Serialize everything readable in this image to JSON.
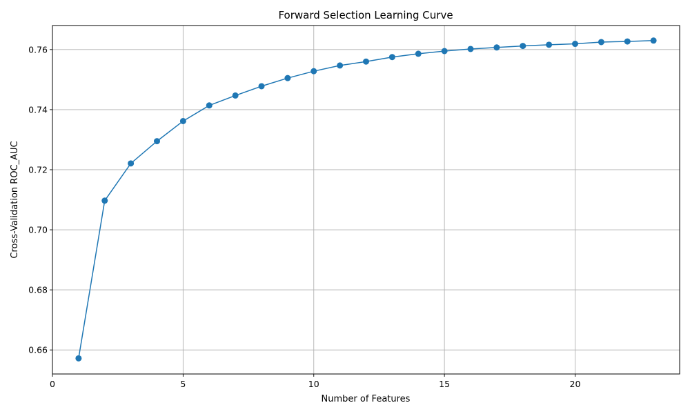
{
  "chart_data": {
    "type": "line",
    "title": "Forward Selection Learning Curve",
    "xlabel": "Number of Features",
    "ylabel": "Cross-Validation ROC_AUC",
    "xlim": [
      0,
      24
    ],
    "ylim": [
      0.652,
      0.768
    ],
    "xticks": [
      0,
      5,
      10,
      15,
      20
    ],
    "yticks": [
      0.66,
      0.68,
      0.7,
      0.72,
      0.74,
      0.76
    ],
    "grid": true,
    "marker": "circle",
    "color": "#1f77b4",
    "series": [
      {
        "x": [
          1,
          2,
          3,
          4,
          5,
          6,
          7,
          8,
          9,
          10,
          11,
          12,
          13,
          14,
          15,
          16,
          17,
          18,
          19,
          20,
          21,
          22,
          23
        ],
        "values": [
          0.6572,
          0.7097,
          0.7221,
          0.7295,
          0.7362,
          0.7414,
          0.7447,
          0.7478,
          0.7505,
          0.7528,
          0.7547,
          0.756,
          0.7575,
          0.7586,
          0.7595,
          0.7602,
          0.7607,
          0.7612,
          0.7616,
          0.7619,
          0.7625,
          0.7627,
          0.763
        ]
      }
    ]
  }
}
